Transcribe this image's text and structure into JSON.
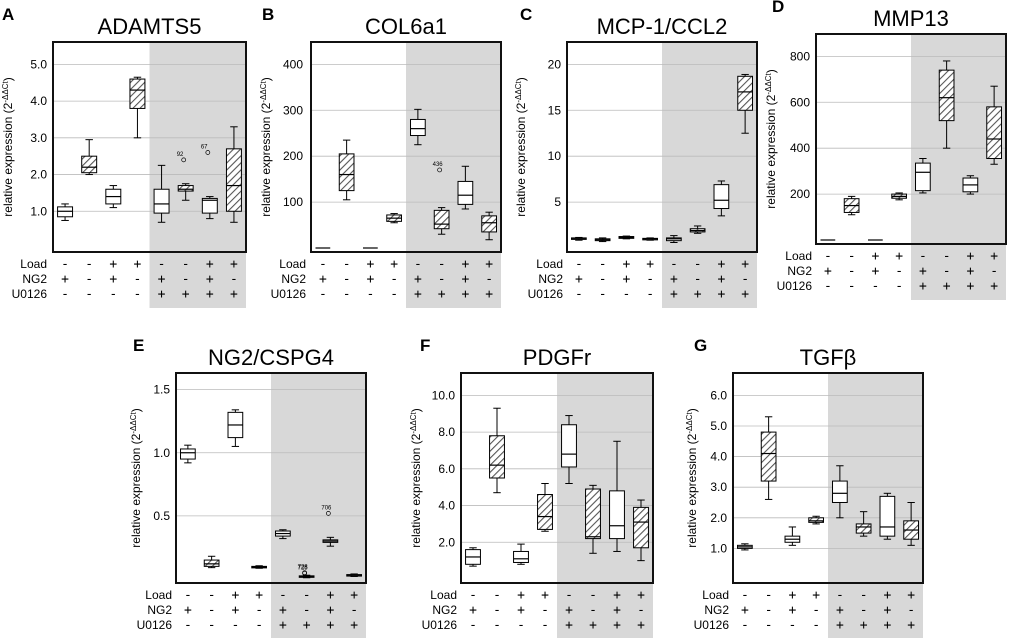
{
  "figure": {
    "row_labels": [
      "Load",
      "NG2",
      "U0126"
    ],
    "ylabel_prefix": "relative expression (2",
    "ylabel_sup": "-ΔΔCt",
    "ylabel_suffix": ")",
    "colors": {
      "shade": "#d8d8d8",
      "hatch": "#555555",
      "grid": "#bbbbbb",
      "frame": "#111111"
    }
  },
  "chart_data": [
    {
      "letter": "A",
      "title": "ADAMTS5",
      "type": "box",
      "ylim": [
        0,
        5.5
      ],
      "yticks": [
        1,
        2,
        3,
        4,
        5
      ],
      "ytick_labels": [
        "1.0",
        "2.0",
        "3.0",
        "4.0",
        "5.0"
      ],
      "conditions": {
        "Load": [
          "-",
          "-",
          "+",
          "+",
          "-",
          "-",
          "+",
          "+"
        ],
        "NG2": [
          "+",
          "-",
          "+",
          "-",
          "+",
          "-",
          "+",
          "-"
        ],
        "U0126": [
          "-",
          "-",
          "-",
          "-",
          "+",
          "+",
          "+",
          "+"
        ]
      },
      "hatched": [
        false,
        true,
        false,
        true,
        false,
        true,
        false,
        true
      ],
      "shaded_from": 4,
      "boxes": [
        {
          "min": 0.75,
          "q1": 0.85,
          "median": 1.0,
          "q3": 1.12,
          "max": 1.2
        },
        {
          "min": 2.0,
          "q1": 2.05,
          "median": 2.2,
          "q3": 2.5,
          "max": 2.95
        },
        {
          "min": 1.1,
          "q1": 1.2,
          "median": 1.4,
          "q3": 1.6,
          "max": 1.7
        },
        {
          "min": 3.0,
          "q1": 3.8,
          "median": 4.3,
          "q3": 4.6,
          "max": 4.65
        },
        {
          "min": 0.7,
          "q1": 0.95,
          "median": 1.2,
          "q3": 1.6,
          "max": 2.25
        },
        {
          "min": 1.3,
          "q1": 1.55,
          "median": 1.6,
          "q3": 1.7,
          "max": 1.75
        },
        {
          "min": 0.8,
          "q1": 0.95,
          "median": 1.3,
          "q3": 1.35,
          "max": 1.4
        },
        {
          "min": 0.7,
          "q1": 1.0,
          "median": 1.7,
          "q3": 2.7,
          "max": 3.3
        }
      ],
      "outliers": [
        {
          "box": 5,
          "value": 2.4,
          "label": "92"
        },
        {
          "box": 6,
          "value": 2.6,
          "label": "67"
        }
      ]
    },
    {
      "letter": "B",
      "title": "COL6a1",
      "type": "box",
      "ylim": [
        0,
        440
      ],
      "yticks": [
        100,
        200,
        300,
        400
      ],
      "ytick_labels": [
        "100",
        "200",
        "300",
        "400"
      ],
      "conditions": {
        "Load": [
          "-",
          "-",
          "+",
          "+",
          "-",
          "-",
          "+",
          "+"
        ],
        "NG2": [
          "+",
          "-",
          "+",
          "-",
          "+",
          "-",
          "+",
          "-"
        ],
        "U0126": [
          "-",
          "-",
          "-",
          "-",
          "+",
          "+",
          "+",
          "+"
        ]
      },
      "hatched": [
        false,
        true,
        false,
        true,
        false,
        true,
        false,
        true
      ],
      "shaded_from": 4,
      "boxes": [
        {
          "min": 0,
          "q1": 0,
          "median": 0,
          "q3": 0,
          "max": 0
        },
        {
          "min": 105,
          "q1": 125,
          "median": 160,
          "q3": 205,
          "max": 235
        },
        {
          "min": 0,
          "q1": 0,
          "median": 0,
          "q3": 0,
          "max": 0
        },
        {
          "min": 55,
          "q1": 58,
          "median": 65,
          "q3": 72,
          "max": 75
        },
        {
          "min": 225,
          "q1": 245,
          "median": 260,
          "q3": 280,
          "max": 302
        },
        {
          "min": 30,
          "q1": 42,
          "median": 52,
          "q3": 82,
          "max": 88
        },
        {
          "min": 85,
          "q1": 95,
          "median": 115,
          "q3": 145,
          "max": 178
        },
        {
          "min": 18,
          "q1": 35,
          "median": 55,
          "q3": 70,
          "max": 78
        }
      ],
      "outliers": [
        {
          "box": 5,
          "value": 170,
          "label": "436"
        }
      ]
    },
    {
      "letter": "C",
      "title": "MCP-1/CCL2",
      "type": "box",
      "ylim": [
        0,
        22
      ],
      "yticks": [
        5,
        10,
        15,
        20
      ],
      "ytick_labels": [
        "5",
        "10",
        "15",
        "20"
      ],
      "conditions": {
        "Load": [
          "-",
          "-",
          "+",
          "+",
          "-",
          "-",
          "+",
          "+"
        ],
        "NG2": [
          "+",
          "-",
          "+",
          "-",
          "+",
          "-",
          "+",
          "-"
        ],
        "U0126": [
          "-",
          "-",
          "-",
          "-",
          "+",
          "+",
          "+",
          "+"
        ]
      },
      "hatched": [
        false,
        true,
        false,
        true,
        false,
        true,
        false,
        true
      ],
      "shaded_from": 4,
      "boxes": [
        {
          "min": 0.85,
          "q1": 0.95,
          "median": 1.0,
          "q3": 1.1,
          "max": 1.15
        },
        {
          "min": 0.7,
          "q1": 0.8,
          "median": 0.9,
          "q3": 1.0,
          "max": 1.1
        },
        {
          "min": 1.0,
          "q1": 1.05,
          "median": 1.15,
          "q3": 1.25,
          "max": 1.3
        },
        {
          "min": 0.85,
          "q1": 0.9,
          "median": 1.0,
          "q3": 1.05,
          "max": 1.1
        },
        {
          "min": 0.6,
          "q1": 0.8,
          "median": 1.0,
          "q3": 1.1,
          "max": 1.35
        },
        {
          "min": 1.6,
          "q1": 1.75,
          "median": 1.9,
          "q3": 2.1,
          "max": 2.4
        },
        {
          "min": 3.5,
          "q1": 4.3,
          "median": 5.2,
          "q3": 6.9,
          "max": 7.3
        },
        {
          "min": 12.5,
          "q1": 15.0,
          "median": 17.0,
          "q3": 18.7,
          "max": 18.9
        }
      ],
      "outliers": []
    },
    {
      "letter": "D",
      "title": "MMP13",
      "type": "box",
      "ylim": [
        0,
        880
      ],
      "yticks": [
        200,
        400,
        600,
        800
      ],
      "ytick_labels": [
        "200",
        "400",
        "600",
        "800"
      ],
      "conditions": {
        "Load": [
          "-",
          "-",
          "+",
          "+",
          "-",
          "-",
          "+",
          "+"
        ],
        "NG2": [
          "+",
          "-",
          "+",
          "-",
          "+",
          "-",
          "+",
          "-"
        ],
        "U0126": [
          "-",
          "-",
          "-",
          "-",
          "+",
          "+",
          "+",
          "+"
        ]
      },
      "hatched": [
        false,
        true,
        false,
        true,
        false,
        true,
        false,
        true
      ],
      "shaded_from": 4,
      "boxes": [
        {
          "min": 0,
          "q1": 0,
          "median": 0,
          "q3": 0,
          "max": 0
        },
        {
          "min": 110,
          "q1": 120,
          "median": 150,
          "q3": 180,
          "max": 190
        },
        {
          "min": 0,
          "q1": 0,
          "median": 0,
          "q3": 0,
          "max": 0
        },
        {
          "min": 175,
          "q1": 182,
          "median": 190,
          "q3": 200,
          "max": 205
        },
        {
          "min": 205,
          "q1": 215,
          "median": 295,
          "q3": 335,
          "max": 355
        },
        {
          "min": 400,
          "q1": 520,
          "median": 620,
          "q3": 740,
          "max": 780
        },
        {
          "min": 200,
          "q1": 210,
          "median": 240,
          "q3": 270,
          "max": 280
        },
        {
          "min": 330,
          "q1": 355,
          "median": 440,
          "q3": 580,
          "max": 670
        }
      ],
      "outliers": []
    },
    {
      "letter": "E",
      "title": "NG2/CSPG4",
      "type": "box",
      "ylim": [
        0,
        1.6
      ],
      "yticks": [
        0.5,
        1.0,
        1.5
      ],
      "ytick_labels": [
        "0.5",
        "1.0",
        "1.5"
      ],
      "conditions": {
        "Load": [
          "-",
          "-",
          "+",
          "+",
          "-",
          "-",
          "+",
          "+"
        ],
        "NG2": [
          "+",
          "-",
          "+",
          "-",
          "+",
          "-",
          "+",
          "-"
        ],
        "U0126": [
          "-",
          "-",
          "-",
          "-",
          "+",
          "+",
          "+",
          "+"
        ]
      },
      "hatched": [
        false,
        true,
        false,
        true,
        false,
        true,
        false,
        true
      ],
      "shaded_from": 4,
      "boxes": [
        {
          "min": 0.92,
          "q1": 0.95,
          "median": 1.0,
          "q3": 1.03,
          "max": 1.06
        },
        {
          "min": 0.09,
          "q1": 0.1,
          "median": 0.12,
          "q3": 0.15,
          "max": 0.18
        },
        {
          "min": 1.05,
          "q1": 1.12,
          "median": 1.22,
          "q3": 1.32,
          "max": 1.34
        },
        {
          "min": 0.085,
          "q1": 0.09,
          "median": 0.095,
          "q3": 0.1,
          "max": 0.105
        },
        {
          "min": 0.32,
          "q1": 0.34,
          "median": 0.36,
          "q3": 0.38,
          "max": 0.39
        },
        {
          "min": 0.01,
          "q1": 0.015,
          "median": 0.02,
          "q3": 0.025,
          "max": 0.03
        },
        {
          "min": 0.26,
          "q1": 0.29,
          "median": 0.3,
          "q3": 0.31,
          "max": 0.33
        },
        {
          "min": 0.02,
          "q1": 0.025,
          "median": 0.03,
          "q3": 0.035,
          "max": 0.04
        }
      ],
      "outliers": [
        {
          "box": 5,
          "value": 0.045,
          "label": "725"
        },
        {
          "box": 5,
          "value": 0.05,
          "label": "728"
        },
        {
          "box": 6,
          "value": 0.52,
          "label": "706"
        }
      ]
    },
    {
      "letter": "F",
      "title": "PDGFr",
      "type": "box",
      "ylim": [
        0,
        11
      ],
      "yticks": [
        2,
        4,
        6,
        8,
        10
      ],
      "ytick_labels": [
        "2.0",
        "4.0",
        "6.0",
        "8.0",
        "10.0"
      ],
      "conditions": {
        "Load": [
          "-",
          "-",
          "+",
          "+",
          "-",
          "-",
          "+",
          "+"
        ],
        "NG2": [
          "+",
          "-",
          "+",
          "-",
          "+",
          "-",
          "+",
          "-"
        ],
        "U0126": [
          "-",
          "-",
          "-",
          "-",
          "+",
          "+",
          "+",
          "+"
        ]
      },
      "hatched": [
        false,
        true,
        false,
        true,
        false,
        true,
        false,
        true
      ],
      "shaded_from": 4,
      "boxes": [
        {
          "min": 0.7,
          "q1": 0.8,
          "median": 1.2,
          "q3": 1.6,
          "max": 1.7
        },
        {
          "min": 4.7,
          "q1": 5.5,
          "median": 6.2,
          "q3": 7.8,
          "max": 9.3
        },
        {
          "min": 0.8,
          "q1": 0.9,
          "median": 1.1,
          "q3": 1.5,
          "max": 1.9
        },
        {
          "min": 2.6,
          "q1": 2.7,
          "median": 3.4,
          "q3": 4.6,
          "max": 5.2
        },
        {
          "min": 5.2,
          "q1": 6.1,
          "median": 6.8,
          "q3": 8.4,
          "max": 8.9
        },
        {
          "min": 1.4,
          "q1": 2.2,
          "median": 2.3,
          "q3": 4.9,
          "max": 5.1
        },
        {
          "min": 1.5,
          "q1": 2.2,
          "median": 2.9,
          "q3": 4.8,
          "max": 7.5
        },
        {
          "min": 1.0,
          "q1": 1.7,
          "median": 3.1,
          "q3": 3.9,
          "max": 4.3
        }
      ],
      "outliers": []
    },
    {
      "letter": "G",
      "title": "TGFβ",
      "type": "box",
      "ylim": [
        0,
        6.6
      ],
      "yticks": [
        1,
        2,
        3,
        4,
        5,
        6
      ],
      "ytick_labels": [
        "1.0",
        "2.0",
        "3.0",
        "4.0",
        "5.0",
        "6.0"
      ],
      "conditions": {
        "Load": [
          "-",
          "-",
          "+",
          "+",
          "-",
          "-",
          "+",
          "+"
        ],
        "NG2": [
          "+",
          "-",
          "+",
          "-",
          "+",
          "-",
          "+",
          "-"
        ],
        "U0126": [
          "-",
          "-",
          "-",
          "-",
          "+",
          "+",
          "+",
          "+"
        ]
      },
      "hatched": [
        false,
        true,
        false,
        true,
        false,
        true,
        false,
        true
      ],
      "shaded_from": 4,
      "boxes": [
        {
          "min": 0.95,
          "q1": 1.0,
          "median": 1.05,
          "q3": 1.1,
          "max": 1.15
        },
        {
          "min": 2.6,
          "q1": 3.2,
          "median": 4.1,
          "q3": 4.8,
          "max": 5.3
        },
        {
          "min": 1.1,
          "q1": 1.2,
          "median": 1.3,
          "q3": 1.4,
          "max": 1.7
        },
        {
          "min": 1.8,
          "q1": 1.85,
          "median": 1.9,
          "q3": 2.0,
          "max": 2.05
        },
        {
          "min": 2.0,
          "q1": 2.5,
          "median": 2.8,
          "q3": 3.2,
          "max": 3.7
        },
        {
          "min": 1.4,
          "q1": 1.5,
          "median": 1.7,
          "q3": 1.8,
          "max": 2.2
        },
        {
          "min": 1.3,
          "q1": 1.4,
          "median": 1.7,
          "q3": 2.7,
          "max": 2.8
        },
        {
          "min": 1.1,
          "q1": 1.3,
          "median": 1.6,
          "q3": 1.9,
          "max": 2.5
        }
      ],
      "outliers": []
    }
  ]
}
